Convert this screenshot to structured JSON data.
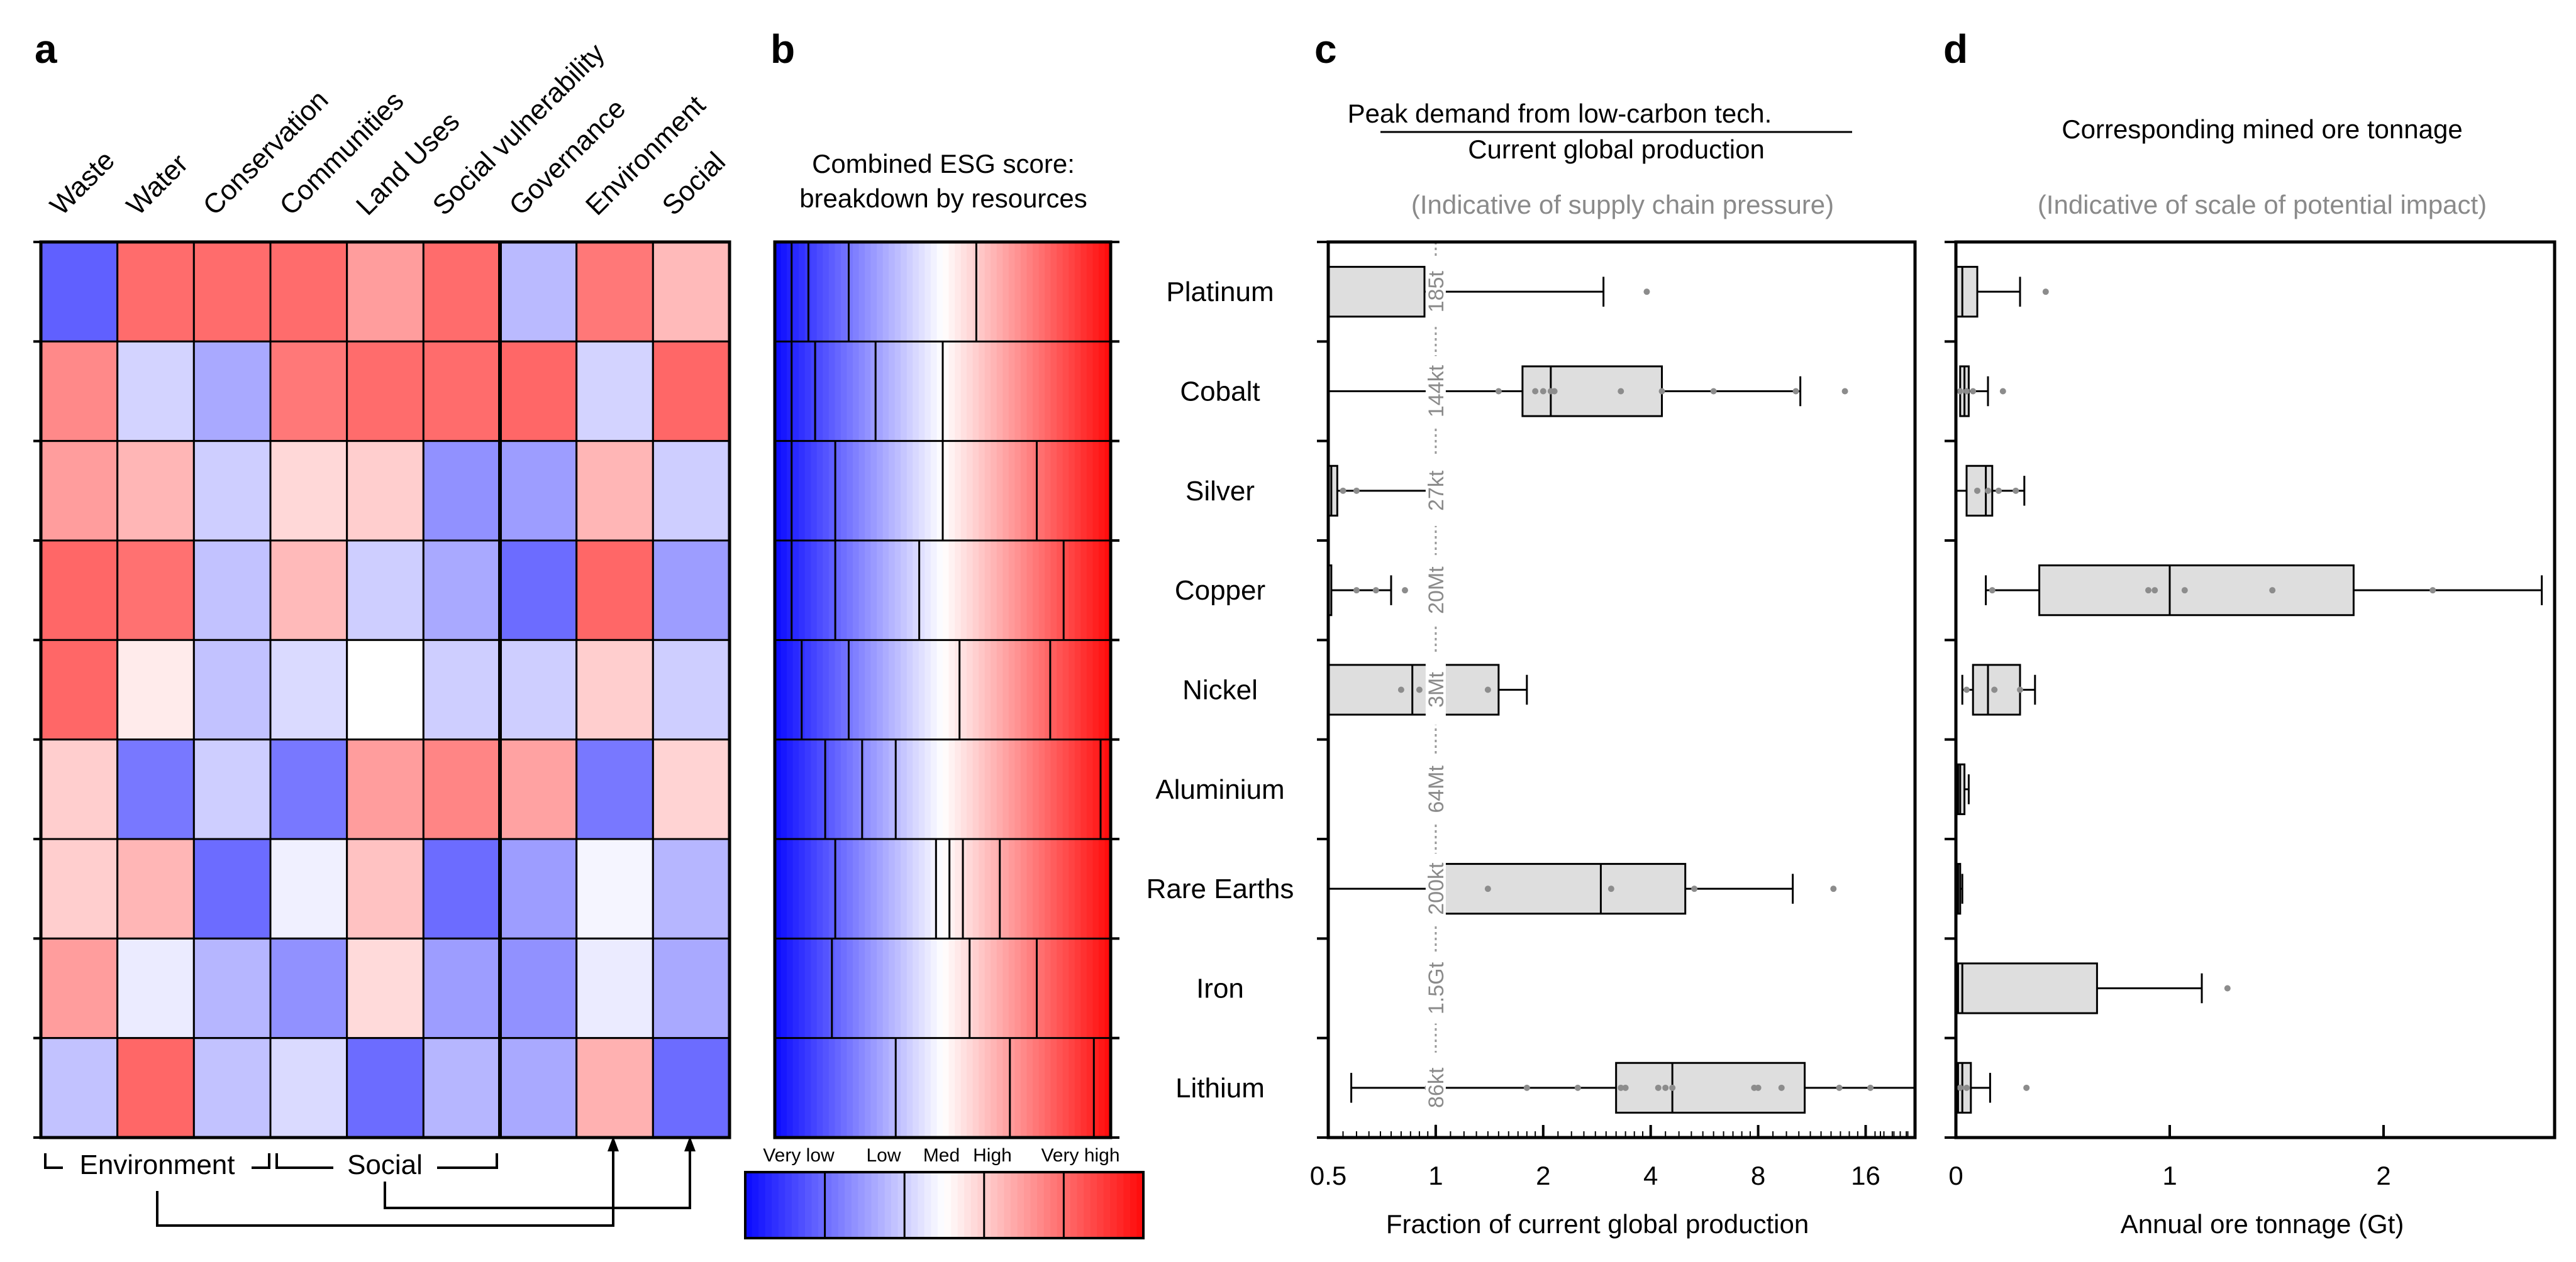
{
  "panel_letters": {
    "a": "a",
    "b": "b",
    "c": "c",
    "d": "d"
  },
  "panel_a": {
    "columns": [
      "Waste",
      "Water",
      "Conservation",
      "Communities",
      "Land Uses",
      "Social vulnerability",
      "Governance",
      "Environment",
      "Social"
    ],
    "groups": {
      "environment": "Environment",
      "social": "Social"
    }
  },
  "panel_b": {
    "title_line1": "Combined ESG score:",
    "title_line2": "breakdown by resources",
    "legend": [
      "Very low",
      "Low",
      "Med",
      "High",
      "Very high"
    ]
  },
  "panel_c": {
    "title_numerator": "Peak demand from low-carbon tech.",
    "title_denominator": "Current global production",
    "subtitle": "(Indicative of supply chain pressure)",
    "xlabel": "Fraction of current global production"
  },
  "panel_d": {
    "title": "Corresponding mined ore tonnage",
    "subtitle": "(Indicative of scale of potential impact)",
    "xlabel": "Annual ore tonnage (Gt)"
  },
  "resources": [
    "Platinum",
    "Cobalt",
    "Silver",
    "Copper",
    "Nickel",
    "Aluminium",
    "Rare Earths",
    "Iron",
    "Lithium"
  ],
  "chart_data": [
    {
      "type": "heatmap",
      "id": "a",
      "title": "",
      "columns": [
        "Waste",
        "Water",
        "Conservation",
        "Communities",
        "Land Uses",
        "Social vulnerability",
        "Governance",
        "Environment",
        "Social"
      ],
      "rows": [
        "Platinum",
        "Cobalt",
        "Silver",
        "Copper",
        "Nickel",
        "Aluminium",
        "Rare Earths",
        "Iron",
        "Lithium"
      ],
      "scale": "-1 = very low (blue), 0 = medium (white), 1 = very high (red)",
      "values": [
        [
          -0.65,
          0.6,
          0.6,
          0.6,
          0.4,
          0.6,
          -0.28,
          0.55,
          0.28
        ],
        [
          0.48,
          -0.18,
          -0.35,
          0.55,
          0.6,
          0.6,
          0.62,
          -0.18,
          0.62
        ],
        [
          0.4,
          0.3,
          -0.2,
          0.16,
          0.2,
          -0.45,
          -0.4,
          0.3,
          -0.2
        ],
        [
          0.62,
          0.58,
          -0.25,
          0.28,
          -0.2,
          -0.35,
          -0.6,
          0.62,
          -0.4
        ],
        [
          0.62,
          0.08,
          -0.25,
          -0.15,
          0.0,
          -0.2,
          -0.2,
          0.2,
          -0.2
        ],
        [
          0.2,
          -0.55,
          -0.2,
          -0.55,
          0.4,
          0.5,
          0.38,
          -0.55,
          0.18
        ],
        [
          0.2,
          0.3,
          -0.6,
          -0.06,
          0.25,
          -0.6,
          -0.4,
          -0.04,
          -0.3
        ],
        [
          0.4,
          -0.08,
          -0.3,
          -0.45,
          0.15,
          -0.4,
          -0.45,
          -0.08,
          -0.35
        ],
        [
          -0.25,
          0.62,
          -0.25,
          -0.15,
          -0.6,
          -0.3,
          -0.35,
          0.32,
          -0.6
        ]
      ]
    },
    {
      "type": "heatmap",
      "id": "b",
      "title": "Combined ESG score: breakdown by resources",
      "rows": [
        "Platinum",
        "Cobalt",
        "Silver",
        "Copper",
        "Nickel",
        "Aluminium",
        "Rare Earths",
        "Iron",
        "Lithium"
      ],
      "scale": "cumulative distribution of combined ESG score, 0 = very low (blue) to 1 = very high (red)",
      "segment_boundaries": [
        [
          0.05,
          0.1,
          0.22,
          0.6
        ],
        [
          0.05,
          0.12,
          0.3,
          0.5
        ],
        [
          0.05,
          0.18,
          0.5,
          0.78
        ],
        [
          0.05,
          0.18,
          0.43,
          0.86
        ],
        [
          0.08,
          0.22,
          0.55,
          0.82
        ],
        [
          0.15,
          0.26,
          0.36,
          0.97
        ],
        [
          0.18,
          0.48,
          0.52,
          0.56,
          0.67
        ],
        [
          0.17,
          0.58,
          0.78
        ],
        [
          0.36,
          0.7,
          0.95
        ]
      ]
    },
    {
      "type": "box",
      "id": "c",
      "title": "Peak demand from low-carbon tech. / Current global production",
      "xlabel": "Fraction of current global production",
      "xscale": "log2",
      "xlim": [
        0.5,
        22
      ],
      "xticks": [
        0.5,
        1,
        2,
        4,
        8,
        16
      ],
      "xtick_labels": [
        "0.5",
        "1",
        "2",
        "4",
        "8",
        "16"
      ],
      "reference_line": {
        "x": 1,
        "labels": [
          "185t",
          "144kt",
          "27kt",
          "20Mt",
          "3Mt",
          "64Mt",
          "200kt",
          "1.5Gt",
          "86kt"
        ]
      },
      "series": [
        {
          "name": "Platinum",
          "whisker_low": 0.5,
          "q1": 0.5,
          "median": 0.5,
          "q3": 0.93,
          "whisker_high": 2.95,
          "points": [
            3.9
          ]
        },
        {
          "name": "Cobalt",
          "whisker_low": 0.5,
          "q1": 1.75,
          "median": 2.1,
          "q3": 4.3,
          "whisker_high": 10.5,
          "points": [
            1.5,
            1.9,
            2.0,
            2.1,
            2.15,
            3.3,
            4.3,
            6.0,
            10.2,
            14.0
          ]
        },
        {
          "name": "Silver",
          "whisker_low": 0.5,
          "q1": 0.5,
          "median": 0.51,
          "q3": 0.53,
          "whisker_high": 0.95,
          "points": [
            0.55,
            0.6
          ]
        },
        {
          "name": "Copper",
          "whisker_low": 0.5,
          "q1": 0.5,
          "median": 0.5,
          "q3": 0.51,
          "whisker_high": 0.75,
          "points": [
            0.6,
            0.68,
            0.82
          ]
        },
        {
          "name": "Nickel",
          "whisker_low": 0.5,
          "q1": 0.5,
          "median": 0.86,
          "q3": 1.5,
          "whisker_high": 1.8,
          "points": [
            0.8,
            0.9,
            1.4
          ]
        },
        {
          "name": "Aluminium",
          "whisker_low": null,
          "q1": null,
          "median": null,
          "q3": null,
          "whisker_high": null,
          "points": []
        },
        {
          "name": "Rare Earths",
          "whisker_low": 0.5,
          "q1": 1.0,
          "median": 2.9,
          "q3": 5.0,
          "whisker_high": 10.0,
          "points": [
            1.4,
            3.1,
            5.3,
            13.0
          ]
        },
        {
          "name": "Iron",
          "whisker_low": null,
          "q1": null,
          "median": null,
          "q3": null,
          "whisker_high": null,
          "points": []
        },
        {
          "name": "Lithium",
          "whisker_low": 0.58,
          "q1": 3.2,
          "median": 4.6,
          "q3": 10.8,
          "whisker_high": 22,
          "points": [
            0.95,
            1.8,
            2.5,
            3.3,
            3.4,
            4.2,
            4.4,
            4.6,
            7.8,
            8.0,
            9.3,
            13.5,
            16.5
          ]
        }
      ]
    },
    {
      "type": "box",
      "id": "d",
      "title": "Corresponding mined ore tonnage",
      "xlabel": "Annual ore tonnage (Gt)",
      "xlim": [
        0,
        2.8
      ],
      "xticks": [
        0,
        1,
        2
      ],
      "xtick_labels": [
        "0",
        "1",
        "2"
      ],
      "series": [
        {
          "name": "Platinum",
          "whisker_low": 0.0,
          "q1": 0.0,
          "median": 0.03,
          "q3": 0.1,
          "whisker_high": 0.3,
          "points": [
            0.42
          ]
        },
        {
          "name": "Cobalt",
          "whisker_low": 0.0,
          "q1": 0.02,
          "median": 0.04,
          "q3": 0.06,
          "whisker_high": 0.15,
          "points": [
            0.02,
            0.05,
            0.08,
            0.22
          ]
        },
        {
          "name": "Silver",
          "whisker_low": 0.0,
          "q1": 0.05,
          "median": 0.14,
          "q3": 0.17,
          "whisker_high": 0.32,
          "points": [
            0.1,
            0.15,
            0.2,
            0.28
          ]
        },
        {
          "name": "Copper",
          "whisker_low": 0.14,
          "q1": 0.39,
          "median": 1.0,
          "q3": 1.86,
          "whisker_high": 2.74,
          "points": [
            0.17,
            0.9,
            0.93,
            1.07,
            1.48,
            2.23
          ]
        },
        {
          "name": "Nickel",
          "whisker_low": 0.03,
          "q1": 0.08,
          "median": 0.15,
          "q3": 0.3,
          "whisker_high": 0.37,
          "points": [
            0.05,
            0.18,
            0.3
          ]
        },
        {
          "name": "Aluminium",
          "whisker_low": 0.01,
          "q1": 0.01,
          "median": 0.02,
          "q3": 0.04,
          "whisker_high": 0.06,
          "points": []
        },
        {
          "name": "Rare Earths",
          "whisker_low": 0.0,
          "q1": 0.0,
          "median": 0.01,
          "q3": 0.02,
          "whisker_high": 0.03,
          "points": []
        },
        {
          "name": "Iron",
          "whisker_low": 0.0,
          "q1": 0.01,
          "median": 0.03,
          "q3": 0.66,
          "whisker_high": 1.15,
          "points": [
            1.27
          ]
        },
        {
          "name": "Lithium",
          "whisker_low": 0.0,
          "q1": 0.01,
          "median": 0.03,
          "q3": 0.07,
          "whisker_high": 0.16,
          "points": [
            0.02,
            0.05,
            0.33
          ]
        }
      ]
    }
  ]
}
